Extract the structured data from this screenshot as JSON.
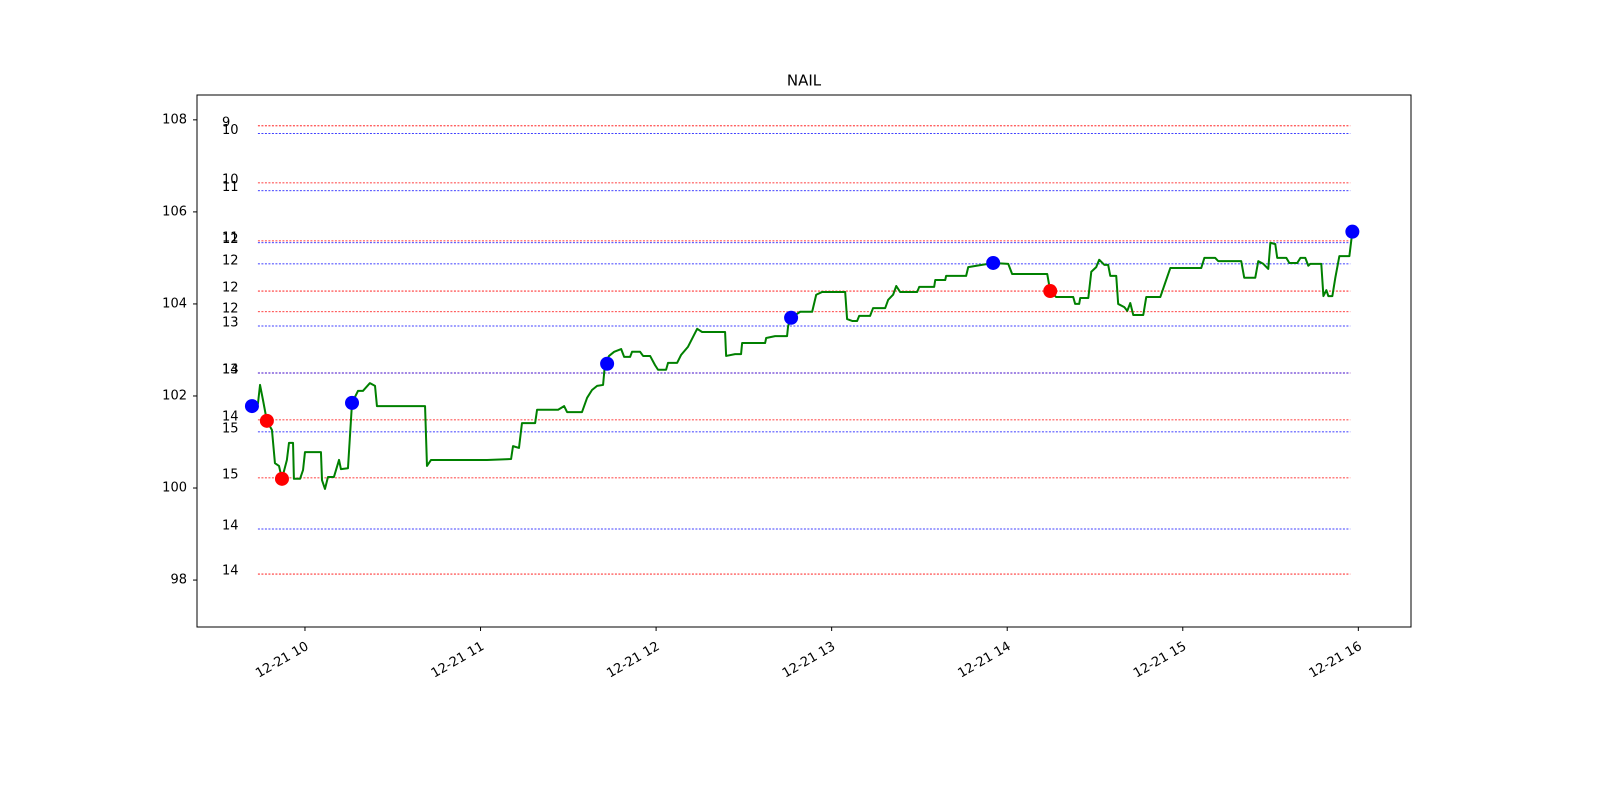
{
  "chart_data": {
    "type": "line",
    "title": "NAIL",
    "xlim": [
      9.385,
      16.3
    ],
    "ylim": [
      96.98,
      108.54
    ],
    "xticks": [
      {
        "value": 10,
        "label": "12-21 10"
      },
      {
        "value": 11,
        "label": "12-21 11"
      },
      {
        "value": 12,
        "label": "12-21 12"
      },
      {
        "value": 13,
        "label": "12-21 13"
      },
      {
        "value": 14,
        "label": "12-21 14"
      },
      {
        "value": 15,
        "label": "12-21 15"
      },
      {
        "value": 16,
        "label": "12-21 16"
      }
    ],
    "yticks": [
      98,
      100,
      102,
      104,
      106,
      108
    ],
    "series": [
      {
        "color": "green",
        "x": [
          9.698,
          9.732,
          9.744,
          9.761,
          9.783,
          9.812,
          9.829,
          9.852,
          9.869,
          9.897,
          9.909,
          9.932,
          9.937,
          9.972,
          9.989,
          10.0,
          10.091,
          10.097,
          10.114,
          10.131,
          10.165,
          10.194,
          10.205,
          10.245,
          10.268,
          10.302,
          10.33,
          10.37,
          10.399,
          10.41,
          10.684,
          10.695,
          10.718,
          11.037,
          11.174,
          11.185,
          11.219,
          11.236,
          11.311,
          11.322,
          11.442,
          11.476,
          11.493,
          11.578,
          11.607,
          11.635,
          11.664,
          11.698,
          11.709,
          11.732,
          11.761,
          11.801,
          11.818,
          11.852,
          11.863,
          11.909,
          11.926,
          11.966,
          11.994,
          12.011,
          12.057,
          12.068,
          12.12,
          12.142,
          12.182,
          12.234,
          12.262,
          12.393,
          12.399,
          12.45,
          12.484,
          12.49,
          12.621,
          12.627,
          12.678,
          12.746,
          12.752,
          12.769,
          12.821,
          12.889,
          12.912,
          12.946,
          13.077,
          13.088,
          13.117,
          13.145,
          13.157,
          13.219,
          13.236,
          13.305,
          13.322,
          13.35,
          13.368,
          13.39,
          13.487,
          13.499,
          13.584,
          13.59,
          13.647,
          13.652,
          13.766,
          13.778,
          13.92,
          14.006,
          14.028,
          14.228,
          14.245,
          14.279,
          14.376,
          14.387,
          14.41,
          14.416,
          14.462,
          14.479,
          14.507,
          14.524,
          14.553,
          14.575,
          14.587,
          14.621,
          14.632,
          14.667,
          14.684,
          14.701,
          14.718,
          14.775,
          14.792,
          14.872,
          14.9,
          14.929,
          15.105,
          15.123,
          15.185,
          15.202,
          15.333,
          15.35,
          15.413,
          15.43,
          15.459,
          15.487,
          15.499,
          15.527,
          15.538,
          15.59,
          15.607,
          15.652,
          15.67,
          15.698,
          15.715,
          15.726,
          15.789,
          15.801,
          15.818,
          15.829,
          15.852,
          15.869,
          15.892,
          15.949,
          15.966
        ],
        "values": [
          101.78,
          101.83,
          102.24,
          101.91,
          101.46,
          101.26,
          100.54,
          100.48,
          100.2,
          100.61,
          100.98,
          100.98,
          100.2,
          100.2,
          100.39,
          100.78,
          100.78,
          100.17,
          99.98,
          100.24,
          100.24,
          100.61,
          100.41,
          100.43,
          101.85,
          102.11,
          102.11,
          102.28,
          102.22,
          101.78,
          101.78,
          100.48,
          100.61,
          100.61,
          100.63,
          100.91,
          100.87,
          101.41,
          101.41,
          101.7,
          101.7,
          101.78,
          101.65,
          101.65,
          101.96,
          102.13,
          102.22,
          102.24,
          102.7,
          102.87,
          102.96,
          103.02,
          102.85,
          102.85,
          102.96,
          102.96,
          102.87,
          102.87,
          102.67,
          102.57,
          102.57,
          102.72,
          102.72,
          102.89,
          103.07,
          103.46,
          103.39,
          103.39,
          102.87,
          102.91,
          102.91,
          103.15,
          103.15,
          103.26,
          103.3,
          103.3,
          103.52,
          103.7,
          103.83,
          103.83,
          104.2,
          104.26,
          104.26,
          103.67,
          103.63,
          103.63,
          103.74,
          103.74,
          103.91,
          103.91,
          104.09,
          104.2,
          104.39,
          104.26,
          104.26,
          104.37,
          104.37,
          104.52,
          104.52,
          104.61,
          104.61,
          104.8,
          104.89,
          104.87,
          104.65,
          104.65,
          104.28,
          104.15,
          104.15,
          104.0,
          104.0,
          104.13,
          104.13,
          104.7,
          104.8,
          104.96,
          104.85,
          104.85,
          104.61,
          104.61,
          104.0,
          103.93,
          103.85,
          104.02,
          103.76,
          103.76,
          104.15,
          104.15,
          104.46,
          104.78,
          104.78,
          105.0,
          105.0,
          104.93,
          104.93,
          104.57,
          104.57,
          104.93,
          104.87,
          104.76,
          105.33,
          105.3,
          105.0,
          105.0,
          104.89,
          104.89,
          105.0,
          105.0,
          104.83,
          104.87,
          104.87,
          104.17,
          104.3,
          104.17,
          104.17,
          104.57,
          105.04,
          105.04,
          105.57
        ]
      }
    ],
    "markers": [
      {
        "color": "blue",
        "x": [
          9.698,
          10.268,
          11.721,
          12.769,
          13.92,
          15.966
        ],
        "values": [
          101.78,
          101.85,
          102.7,
          103.7,
          104.89,
          105.57
        ]
      },
      {
        "color": "red",
        "x": [
          9.783,
          9.869,
          14.245
        ],
        "values": [
          101.46,
          100.2,
          104.28
        ]
      }
    ],
    "level_span": [
      9.732,
      15.954
    ],
    "levels": [
      {
        "value": 107.87,
        "count": 9,
        "color": "red"
      },
      {
        "value": 107.7,
        "count": 10,
        "color": "blue"
      },
      {
        "value": 106.63,
        "count": 10,
        "color": "red"
      },
      {
        "value": 106.46,
        "count": 11,
        "color": "blue"
      },
      {
        "value": 105.37,
        "count": 11,
        "color": "red"
      },
      {
        "value": 105.33,
        "count": 12,
        "color": "blue"
      },
      {
        "value": 104.87,
        "count": 12,
        "color": "blue"
      },
      {
        "value": 104.28,
        "count": 12,
        "color": "red"
      },
      {
        "value": 103.83,
        "count": 12,
        "color": "red"
      },
      {
        "value": 103.52,
        "count": 13,
        "color": "blue"
      },
      {
        "value": 102.5,
        "count": 14,
        "color": "red"
      },
      {
        "value": 102.5,
        "count": 13,
        "color": "blue"
      },
      {
        "value": 101.48,
        "count": 14,
        "color": "red"
      },
      {
        "value": 101.22,
        "count": 15,
        "color": "blue"
      },
      {
        "value": 100.22,
        "count": 15,
        "color": "red"
      },
      {
        "value": 99.11,
        "count": 14,
        "color": "blue"
      },
      {
        "value": 98.13,
        "count": 14,
        "color": "red"
      }
    ]
  }
}
